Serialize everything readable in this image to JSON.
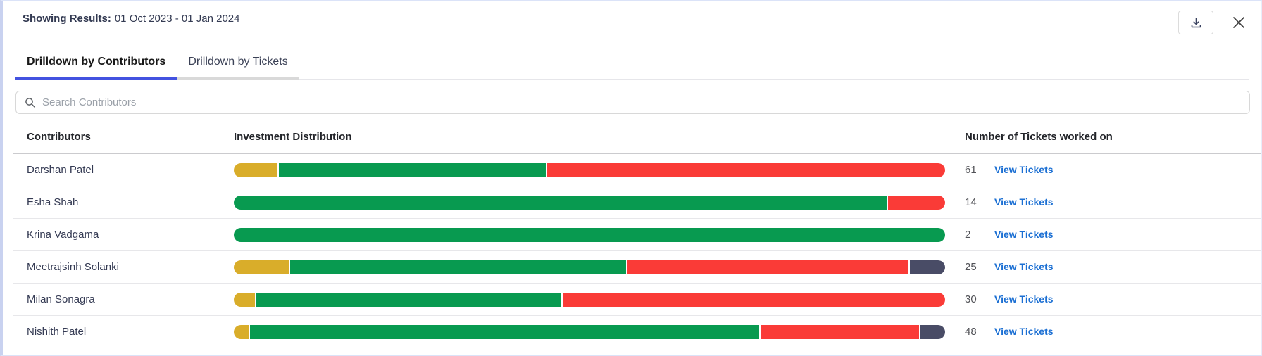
{
  "header": {
    "label": "Showing Results:",
    "date_range": "01 Oct 2023 - 01 Jan 2024"
  },
  "tabs": [
    {
      "label": "Drilldown by Contributors",
      "active": true
    },
    {
      "label": "Drilldown by Tickets",
      "active": false
    }
  ],
  "search": {
    "placeholder": "Search Contributors"
  },
  "table": {
    "columns": [
      "Contributors",
      "Investment Distribution",
      "Number of Tickets worked on"
    ],
    "view_tickets_label": "View Tickets",
    "rows": [
      {
        "name": "Darshan Patel",
        "tickets": "61",
        "segments": [
          {
            "color": "yellow",
            "pct": 6.2
          },
          {
            "color": "green",
            "pct": 37.6
          },
          {
            "color": "red",
            "pct": 56.2
          }
        ]
      },
      {
        "name": "Esha Shah",
        "tickets": "14",
        "segments": [
          {
            "color": "green",
            "pct": 92.0
          },
          {
            "color": "red",
            "pct": 8.0
          }
        ]
      },
      {
        "name": "Krina Vadgama",
        "tickets": "2",
        "segments": [
          {
            "color": "green",
            "pct": 100.0
          }
        ]
      },
      {
        "name": "Meetrajsinh Solanki",
        "tickets": "25",
        "segments": [
          {
            "color": "yellow",
            "pct": 7.8
          },
          {
            "color": "green",
            "pct": 47.5
          },
          {
            "color": "red",
            "pct": 39.7
          },
          {
            "color": "dark",
            "pct": 5.0
          }
        ]
      },
      {
        "name": "Milan Sonagra",
        "tickets": "30",
        "segments": [
          {
            "color": "yellow",
            "pct": 3.0
          },
          {
            "color": "green",
            "pct": 43.0
          },
          {
            "color": "red",
            "pct": 54.0
          }
        ]
      },
      {
        "name": "Nishith Patel",
        "tickets": "48",
        "segments": [
          {
            "color": "yellow",
            "pct": 2.1
          },
          {
            "color": "green",
            "pct": 72.0
          },
          {
            "color": "red",
            "pct": 22.4
          },
          {
            "color": "dark",
            "pct": 3.5
          }
        ]
      }
    ]
  },
  "palette": {
    "yellow": "#D9AD2A",
    "green": "#089A50",
    "red": "#FA3B37",
    "dark": "#494C66",
    "tab_active_underline": "#4352E0",
    "link_blue": "#1B6FD3",
    "text_dark": "#343A53"
  }
}
